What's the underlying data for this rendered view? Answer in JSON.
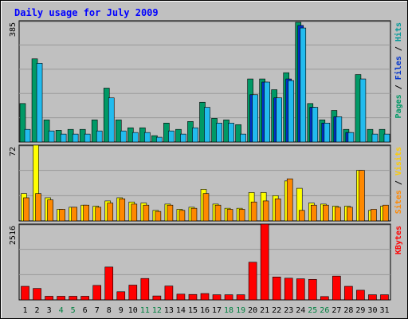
{
  "chart_data": {
    "type": "bar",
    "title": "Daily usage for July 2009",
    "categories": [
      "1",
      "2",
      "3",
      "4",
      "5",
      "6",
      "7",
      "8",
      "9",
      "10",
      "11",
      "12",
      "13",
      "14",
      "15",
      "16",
      "17",
      "18",
      "19",
      "20",
      "21",
      "22",
      "23",
      "24",
      "25",
      "26",
      "27",
      "28",
      "29",
      "30",
      "31"
    ],
    "weekend_days": [
      "4",
      "5",
      "11",
      "12",
      "18",
      "19",
      "25",
      "26"
    ],
    "panels": [
      {
        "id": "top",
        "ymax_label": "385",
        "ylim": [
          0,
          385
        ],
        "series": [
          {
            "name": "Pages",
            "color": "#009966",
            "values": [
              122,
              264,
              70,
              37,
              40,
              40,
              70,
              171,
              70,
              45,
              45,
              20,
              60,
              40,
              65,
              126,
              75,
              70,
              55,
              200,
              200,
              166,
              220,
              380,
              122,
              70,
              100,
              40,
              214,
              40,
              40
            ]
          },
          {
            "name": "Files",
            "color": "#0033cc",
            "values": [
              0,
              0,
              0,
              0,
              0,
              0,
              0,
              0,
              0,
              0,
              0,
              0,
              0,
              0,
              0,
              0,
              0,
              0,
              0,
              150,
              190,
              140,
              200,
              370,
              110,
              60,
              80,
              30,
              0,
              0,
              0
            ]
          },
          {
            "name": "Hits",
            "color": "#22bbee",
            "values": [
              40,
              250,
              35,
              25,
              25,
              25,
              35,
              140,
              35,
              30,
              30,
              15,
              35,
              25,
              45,
              110,
              60,
              60,
              25,
              150,
              190,
              140,
              195,
              362,
              110,
              60,
              80,
              30,
              200,
              25,
              25
            ]
          }
        ]
      },
      {
        "id": "middle",
        "ymax_label": "72",
        "ylim": [
          0,
          72
        ],
        "series": [
          {
            "name": "Sites",
            "color": "#ffff00",
            "values": [
              26,
              72,
              22,
              11,
              13,
              15,
              14,
              19,
              22,
              18,
              17,
              10,
              16,
              11,
              13,
              30,
              16,
              12,
              12,
              27,
              27,
              24,
              38,
              31,
              17,
              16,
              14,
              14,
              48,
              10,
              14
            ]
          },
          {
            "name": "Visits",
            "color": "#ff8800",
            "values": [
              22,
              26,
              20,
              11,
              13,
              15,
              13,
              17,
              21,
              16,
              15,
              9,
              15,
              10,
              12,
              26,
              15,
              11,
              11,
              18,
              19,
              21,
              40,
              10,
              15,
              15,
              13,
              13,
              48,
              11,
              15
            ]
          }
        ]
      },
      {
        "id": "bottom",
        "ymax_label": "2516",
        "ylim": [
          0,
          2516
        ],
        "series": [
          {
            "name": "KBytes",
            "color": "#ff0000",
            "values": [
              450,
              380,
              120,
              120,
              120,
              120,
              480,
              1090,
              270,
              490,
              710,
              130,
              460,
              190,
              180,
              210,
              170,
              170,
              170,
              1250,
              2516,
              760,
              720,
              700,
              680,
              110,
              790,
              450,
              320,
              170,
              170
            ]
          }
        ]
      }
    ],
    "right_labels": {
      "top": [
        {
          "text": "Pages",
          "color": "#009966"
        },
        {
          "text": " / ",
          "color": "#000000"
        },
        {
          "text": "Files",
          "color": "#0033cc"
        },
        {
          "text": " / ",
          "color": "#000000"
        },
        {
          "text": "Hits",
          "color": "#009999"
        }
      ],
      "middle": [
        {
          "text": "Sites",
          "color": "#ff8800"
        },
        {
          "text": " / ",
          "color": "#000000"
        },
        {
          "text": "Visits",
          "color": "#ffcc00"
        }
      ],
      "bottom": [
        {
          "text": "KBytes",
          "color": "#ff0000"
        }
      ]
    },
    "grid": true,
    "legend": "right"
  }
}
